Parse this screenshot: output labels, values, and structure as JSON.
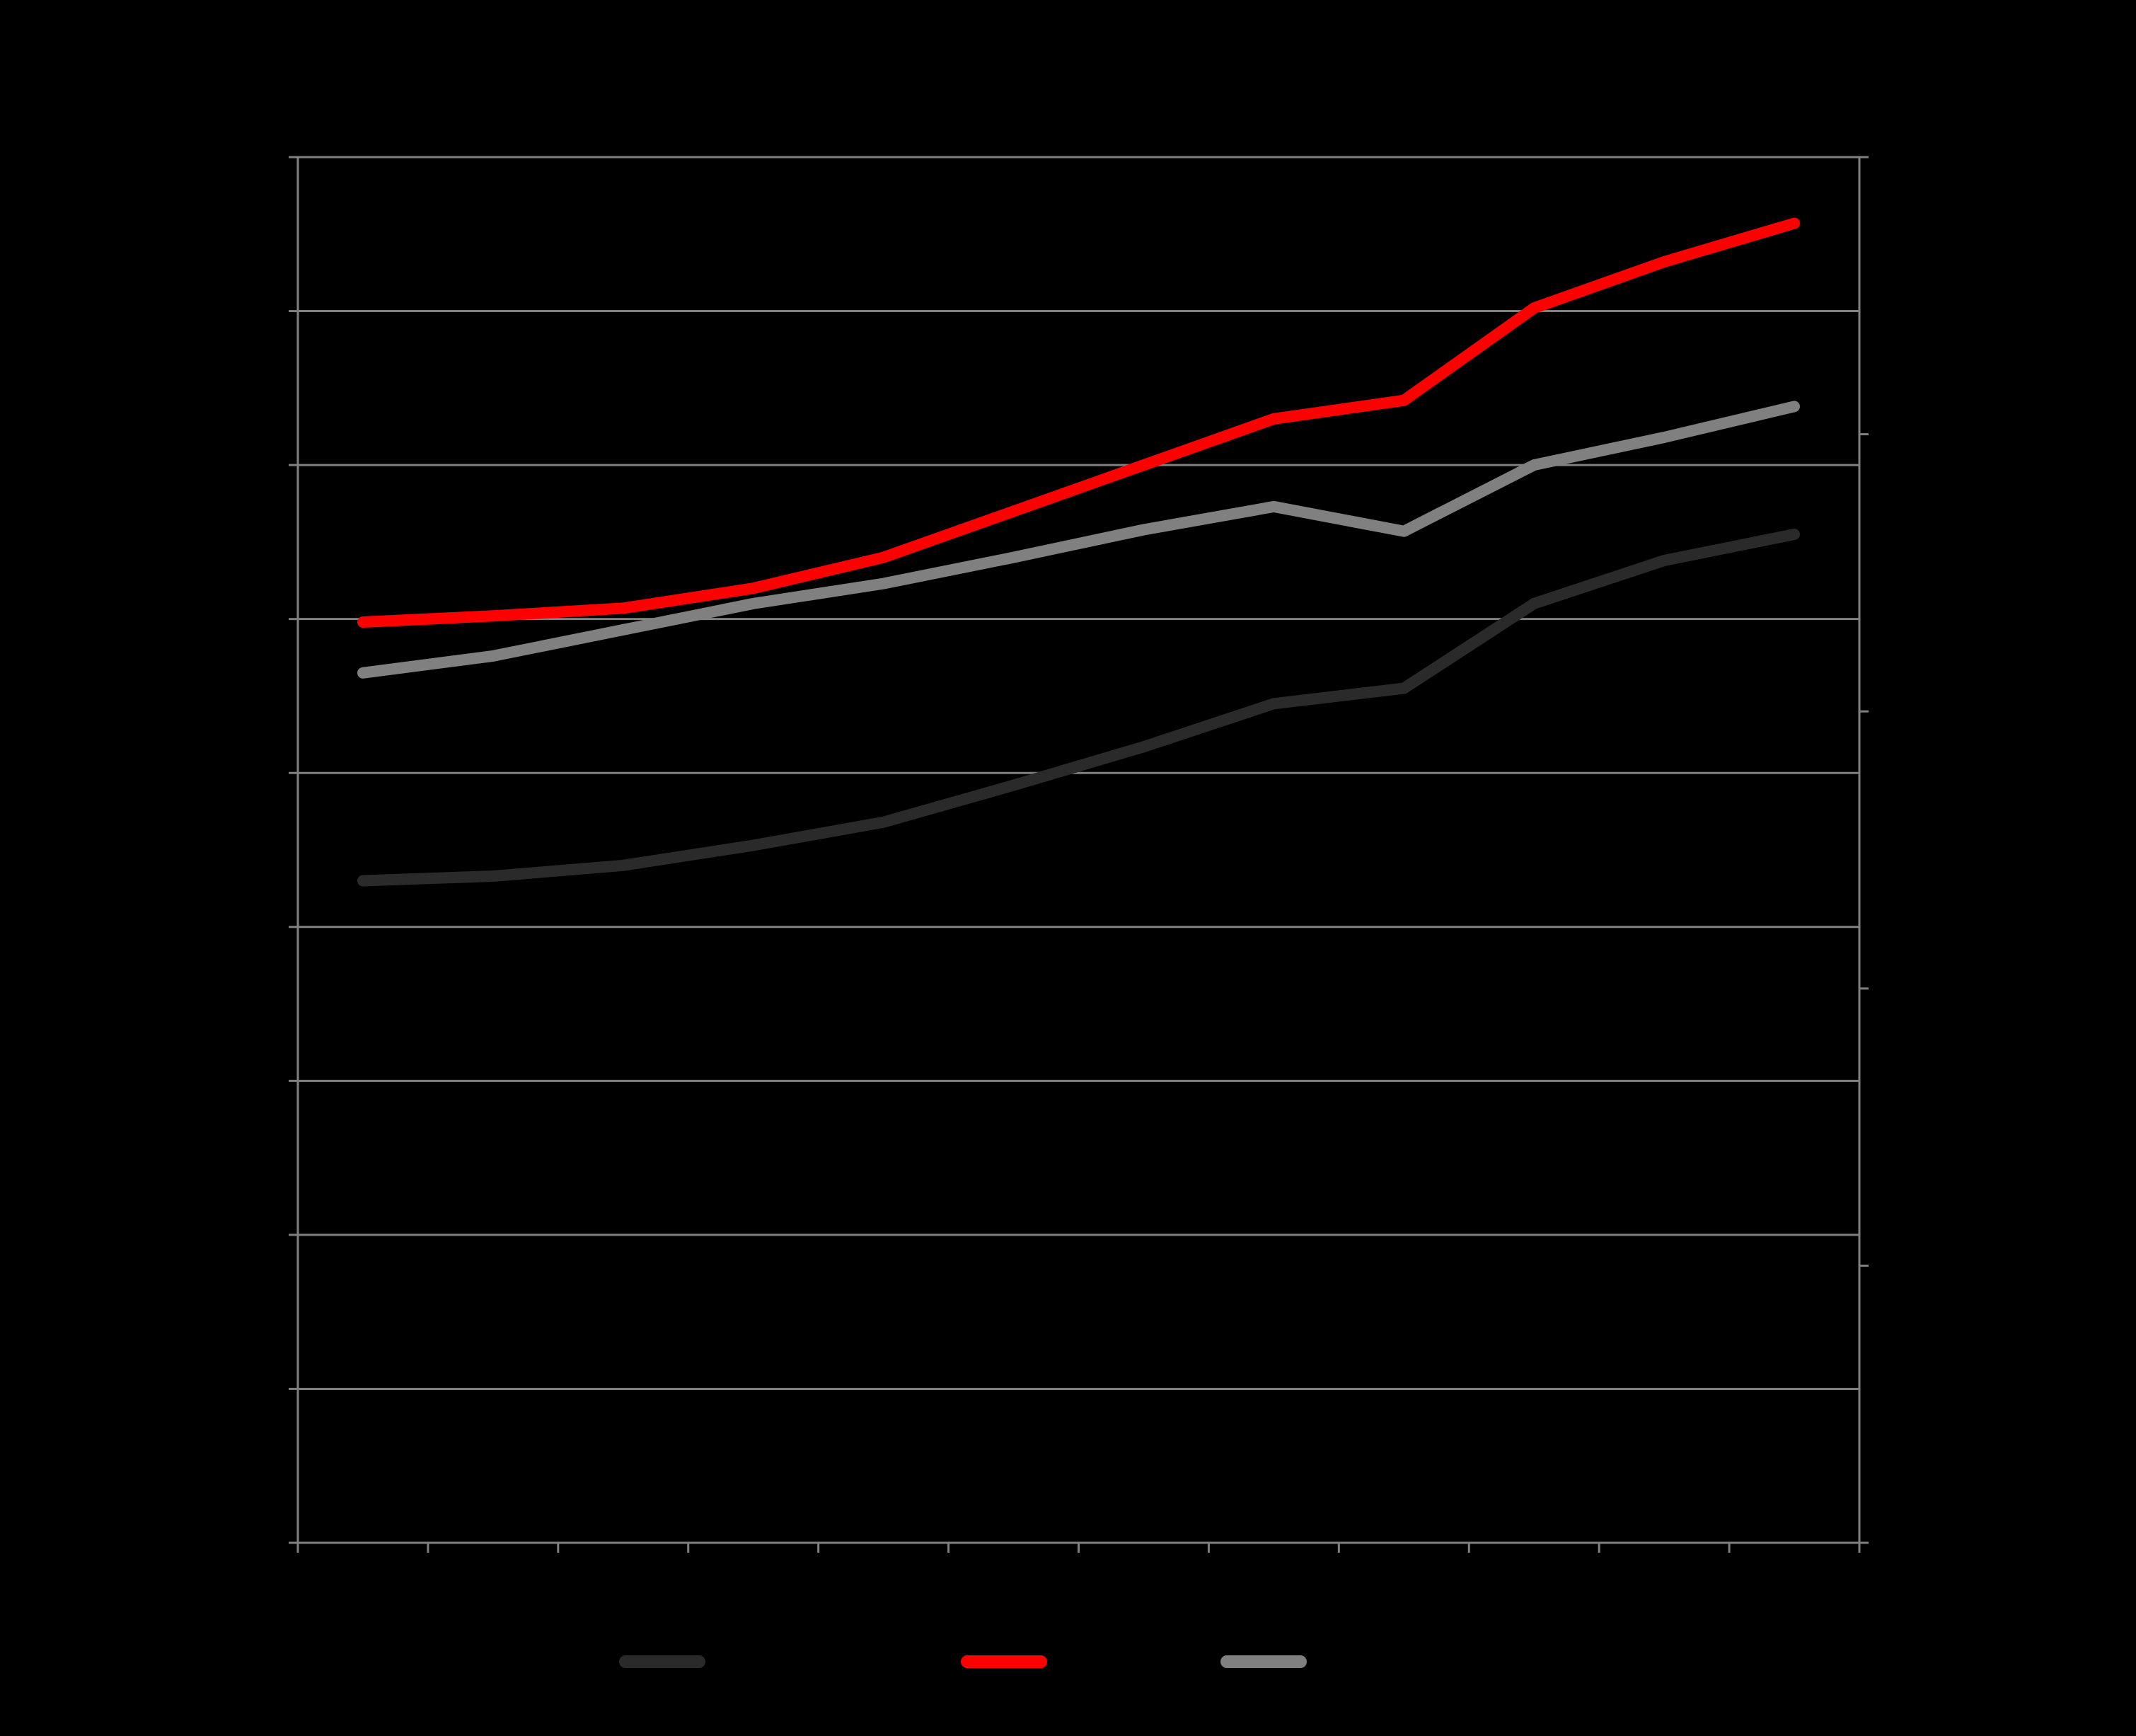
{
  "chart_data": {
    "type": "line",
    "title": "",
    "xlabel": "",
    "ylabel": "",
    "categories": [
      "",
      "",
      "",
      "",
      "",
      "",
      "",
      "",
      "",
      "",
      "",
      ""
    ],
    "ylim": [
      0,
      9
    ],
    "y_gridline_count": 9,
    "right_axis_tick_count": 5,
    "grid": true,
    "legend": "bottom",
    "colors": {
      "background": "#000000",
      "grid": "#808080",
      "axis": "#808080"
    },
    "series": [
      {
        "color": "#2a2a2a",
        "values": [
          4.3,
          4.33,
          4.4,
          4.53,
          4.68,
          4.92,
          5.17,
          5.45,
          5.55,
          6.1,
          6.38,
          6.55
        ]
      },
      {
        "color": "#ff0000",
        "values": [
          5.98,
          6.02,
          6.07,
          6.2,
          6.4,
          6.7,
          7.0,
          7.3,
          7.42,
          8.02,
          8.32,
          8.57
        ]
      },
      {
        "color": "#808080",
        "values": [
          5.65,
          5.76,
          5.93,
          6.1,
          6.23,
          6.4,
          6.58,
          6.73,
          6.57,
          7.0,
          7.18,
          7.38
        ]
      }
    ]
  }
}
